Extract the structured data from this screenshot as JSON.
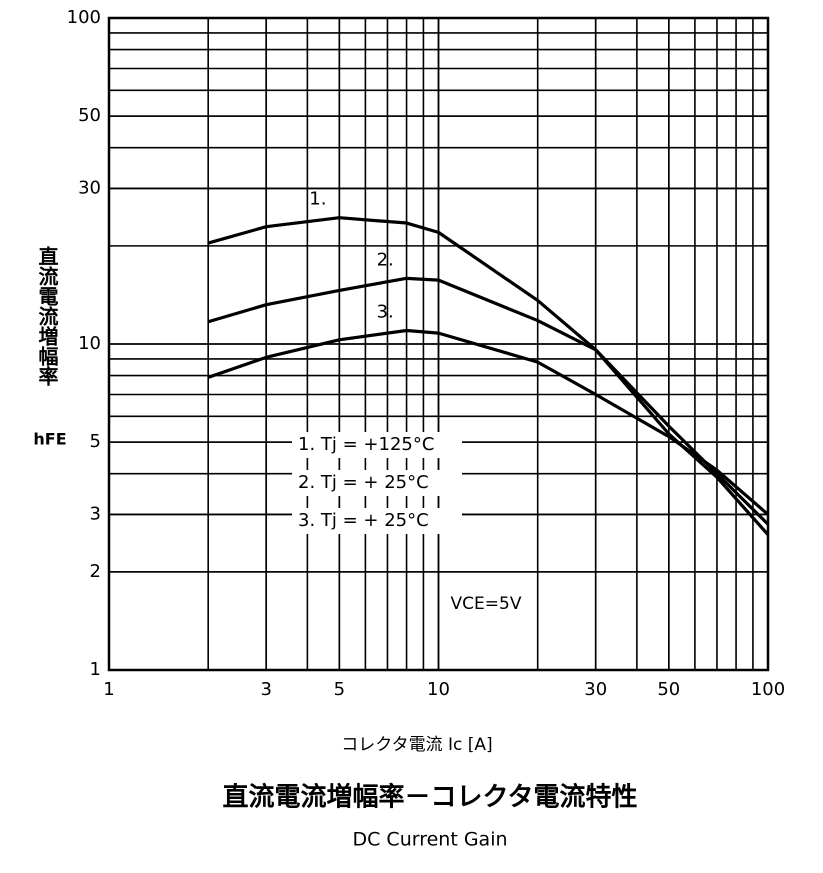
{
  "chart_data": {
    "type": "line",
    "title": "直流電流増幅率－コレクタ電流特性",
    "subtitle": "DC Current Gain",
    "x_label": "コレクタ電流 Ic [A]",
    "y_label": "直流電流増幅率",
    "y_symbol": "hFE",
    "x_log": true,
    "y_log": true,
    "grid": true,
    "minor_grid": true,
    "xlim": [
      1,
      100
    ],
    "ylim": [
      1,
      100
    ],
    "xticks": [
      1,
      3,
      5,
      10,
      30,
      50,
      100
    ],
    "yticks": [
      1,
      2,
      3,
      5,
      10,
      30,
      50,
      100
    ],
    "x": [
      2,
      3,
      5,
      8,
      10,
      20,
      30,
      50,
      70,
      100
    ],
    "series": [
      {
        "name": "1. Tj = +125°C",
        "label": "1.",
        "color": "#000000",
        "values": [
          20.4,
          22.9,
          24.4,
          23.5,
          22,
          13.6,
          9.6,
          5.3,
          3.9,
          2.6
        ]
      },
      {
        "name": "2. Tj = + 25°C",
        "label": "2.",
        "color": "#000000",
        "values": [
          11.7,
          13.2,
          14.6,
          15.9,
          15.7,
          11.8,
          9.6,
          5.6,
          4.0,
          2.8
        ]
      },
      {
        "name": "3. Tj = + 25°C",
        "label": "3.",
        "color": "#000000",
        "values": [
          7.9,
          9.1,
          10.3,
          11.0,
          10.8,
          8.8,
          7.0,
          5.2,
          4.1,
          3.0
        ]
      }
    ],
    "annotation": "VCE=5V"
  }
}
